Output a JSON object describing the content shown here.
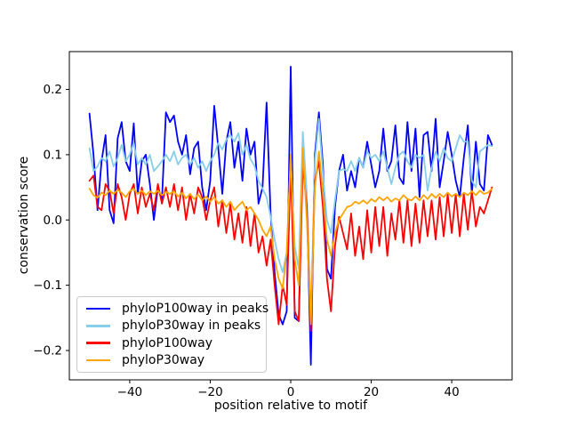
{
  "chart_data": {
    "type": "line",
    "title": "",
    "xlabel": "position relative to motif",
    "ylabel": "conservation score",
    "xlim": [
      -55,
      55
    ],
    "ylim": [
      -0.245,
      0.258
    ],
    "xticks": [
      -40,
      -20,
      0,
      20,
      40
    ],
    "yticks": [
      -0.2,
      -0.1,
      0.0,
      0.1,
      0.2
    ],
    "grid": false,
    "legend_position": "lower left",
    "x": [
      -50,
      -49,
      -48,
      -47,
      -46,
      -45,
      -44,
      -43,
      -42,
      -41,
      -40,
      -39,
      -38,
      -37,
      -36,
      -35,
      -34,
      -33,
      -32,
      -31,
      -30,
      -29,
      -28,
      -27,
      -26,
      -25,
      -24,
      -23,
      -22,
      -21,
      -20,
      -19,
      -18,
      -17,
      -16,
      -15,
      -14,
      -13,
      -12,
      -11,
      -10,
      -9,
      -8,
      -7,
      -6,
      -5,
      -4,
      -3,
      -2,
      -1,
      0,
      1,
      2,
      3,
      4,
      5,
      6,
      7,
      8,
      9,
      10,
      11,
      12,
      13,
      14,
      15,
      16,
      17,
      18,
      19,
      20,
      21,
      22,
      23,
      24,
      25,
      26,
      27,
      28,
      29,
      30,
      31,
      32,
      33,
      34,
      35,
      36,
      37,
      38,
      39,
      40,
      41,
      42,
      43,
      44,
      45,
      46,
      47,
      48,
      49,
      50
    ],
    "series": [
      {
        "name": "phyloP100way in peaks",
        "color": "#0000ff",
        "values": [
          0.163,
          0.1,
          0.015,
          0.09,
          0.13,
          0.015,
          -0.005,
          0.125,
          0.15,
          0.09,
          0.075,
          0.148,
          0.04,
          0.09,
          0.1,
          0.055,
          0.0,
          0.05,
          0.03,
          0.165,
          0.15,
          0.16,
          0.12,
          0.1,
          0.13,
          0.07,
          0.11,
          0.12,
          0.05,
          0.015,
          0.06,
          0.175,
          0.11,
          0.04,
          0.12,
          0.15,
          0.08,
          0.12,
          0.06,
          0.14,
          0.1,
          0.12,
          0.025,
          0.05,
          0.18,
          0.01,
          -0.08,
          -0.145,
          -0.16,
          -0.14,
          0.235,
          -0.15,
          -0.155,
          0.125,
          0.03,
          -0.222,
          0.1,
          0.165,
          0.085,
          -0.075,
          -0.09,
          0.02,
          0.075,
          0.1,
          0.045,
          0.075,
          0.05,
          0.095,
          0.08,
          0.12,
          0.085,
          0.05,
          0.075,
          0.14,
          0.075,
          0.09,
          0.145,
          0.065,
          0.055,
          0.15,
          0.075,
          0.14,
          0.035,
          0.13,
          0.135,
          0.075,
          0.155,
          0.05,
          0.09,
          0.135,
          0.1,
          0.06,
          0.035,
          0.095,
          0.145,
          0.04,
          0.12,
          0.055,
          0.045,
          0.13,
          0.115
        ]
      },
      {
        "name": "phyloP30way in peaks",
        "color": "#87ceeb",
        "values": [
          0.11,
          0.075,
          0.082,
          0.095,
          0.09,
          0.105,
          0.082,
          0.095,
          0.115,
          0.09,
          0.1,
          0.118,
          0.085,
          0.095,
          0.085,
          0.1,
          0.075,
          0.082,
          0.09,
          0.1,
          0.09,
          0.105,
          0.085,
          0.095,
          0.1,
          0.085,
          0.095,
          0.08,
          0.09,
          0.075,
          0.09,
          0.1,
          0.118,
          0.108,
          0.123,
          0.13,
          0.12,
          0.133,
          0.1,
          0.115,
          0.093,
          0.083,
          0.06,
          0.048,
          0.035,
          0.005,
          -0.03,
          -0.06,
          -0.08,
          -0.05,
          0.095,
          -0.04,
          -0.075,
          0.135,
          0.04,
          -0.155,
          0.09,
          0.155,
          0.07,
          0.0,
          -0.02,
          0.03,
          0.075,
          0.078,
          0.075,
          0.09,
          0.075,
          0.095,
          0.08,
          0.105,
          0.095,
          0.1,
          0.09,
          0.105,
          0.08,
          0.055,
          0.08,
          0.1,
          0.105,
          0.09,
          0.08,
          0.1,
          0.095,
          0.1,
          0.045,
          0.08,
          0.105,
          0.09,
          0.11,
          0.095,
          0.09,
          0.11,
          0.13,
          0.12,
          0.12,
          0.06,
          0.05,
          0.105,
          0.11,
          0.115,
          0.113
        ]
      },
      {
        "name": "phyloP100way",
        "color": "#ff0000",
        "values": [
          0.06,
          0.068,
          0.02,
          0.015,
          0.055,
          0.045,
          0.01,
          0.055,
          0.035,
          0.0,
          0.04,
          0.055,
          0.01,
          0.05,
          0.02,
          0.04,
          0.015,
          0.055,
          0.025,
          0.05,
          0.02,
          0.055,
          0.015,
          0.05,
          0.0,
          0.04,
          0.01,
          0.05,
          0.035,
          0.0,
          0.03,
          0.05,
          -0.01,
          0.03,
          -0.02,
          0.025,
          -0.03,
          0.01,
          -0.035,
          0.02,
          -0.04,
          0.01,
          -0.05,
          -0.025,
          -0.07,
          -0.03,
          -0.1,
          -0.16,
          -0.1,
          -0.13,
          0.085,
          -0.14,
          -0.155,
          0.085,
          0.02,
          -0.17,
          0.06,
          0.09,
          0.02,
          -0.09,
          -0.14,
          -0.04,
          0.005,
          -0.02,
          -0.045,
          0.01,
          -0.055,
          -0.01,
          -0.06,
          0.015,
          -0.05,
          0.02,
          -0.04,
          0.02,
          -0.055,
          0.01,
          -0.03,
          0.03,
          -0.035,
          0.03,
          -0.04,
          0.025,
          -0.035,
          0.03,
          -0.025,
          0.03,
          -0.03,
          0.035,
          -0.025,
          0.04,
          -0.02,
          0.04,
          -0.025,
          0.04,
          -0.015,
          0.045,
          -0.01,
          0.02,
          0.01,
          0.03,
          0.05
        ]
      },
      {
        "name": "phyloP30way",
        "color": "#ffa500",
        "values": [
          0.048,
          0.038,
          0.034,
          0.042,
          0.038,
          0.045,
          0.04,
          0.046,
          0.042,
          0.035,
          0.044,
          0.048,
          0.04,
          0.045,
          0.038,
          0.044,
          0.04,
          0.045,
          0.038,
          0.043,
          0.04,
          0.044,
          0.036,
          0.042,
          0.033,
          0.04,
          0.032,
          0.039,
          0.03,
          0.036,
          0.028,
          0.035,
          0.025,
          0.03,
          0.02,
          0.028,
          0.015,
          0.022,
          0.028,
          0.015,
          0.02,
          0.01,
          0.0,
          -0.015,
          -0.025,
          -0.01,
          -0.06,
          -0.09,
          -0.105,
          -0.05,
          0.1,
          -0.06,
          -0.1,
          0.11,
          0.0,
          -0.16,
          0.05,
          0.105,
          0.04,
          -0.03,
          -0.055,
          -0.02,
          0.0,
          0.01,
          0.02,
          0.022,
          0.028,
          0.025,
          0.03,
          0.025,
          0.032,
          0.028,
          0.035,
          0.03,
          0.035,
          0.028,
          0.033,
          0.03,
          0.038,
          0.032,
          0.03,
          0.036,
          0.03,
          0.038,
          0.032,
          0.04,
          0.034,
          0.04,
          0.035,
          0.042,
          0.036,
          0.04,
          0.035,
          0.042,
          0.038,
          0.044,
          0.038,
          0.045,
          0.04,
          0.042,
          0.048
        ]
      }
    ]
  }
}
